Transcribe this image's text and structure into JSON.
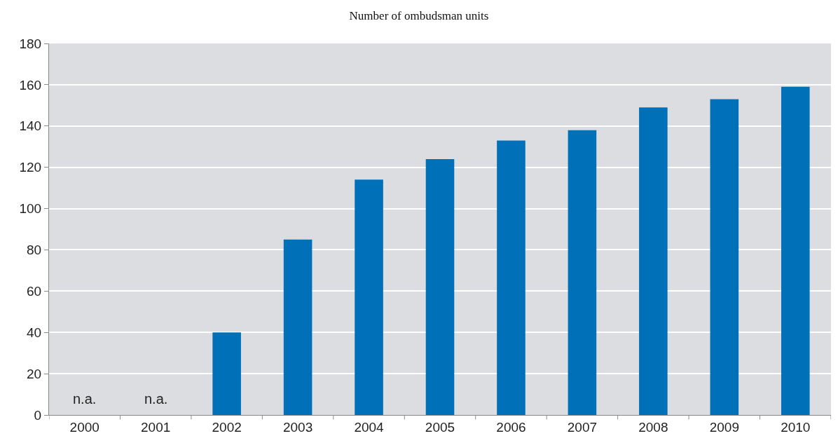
{
  "chart_data": {
    "type": "bar",
    "title": "Number of ombudsman units",
    "categories": [
      "2000",
      "2001",
      "2002",
      "2003",
      "2004",
      "2005",
      "2006",
      "2007",
      "2008",
      "2009",
      "2010"
    ],
    "values": [
      null,
      null,
      40,
      85,
      114,
      124,
      133,
      138,
      149,
      153,
      159
    ],
    "value_labels": [
      "n.a.",
      "n.a.",
      null,
      null,
      null,
      null,
      null,
      null,
      null,
      null,
      null
    ],
    "color": "#0070b8",
    "ylim": [
      0,
      180
    ],
    "yticks": [
      0,
      20,
      40,
      60,
      80,
      100,
      120,
      140,
      160,
      180
    ],
    "grid": "y",
    "legend": false
  }
}
